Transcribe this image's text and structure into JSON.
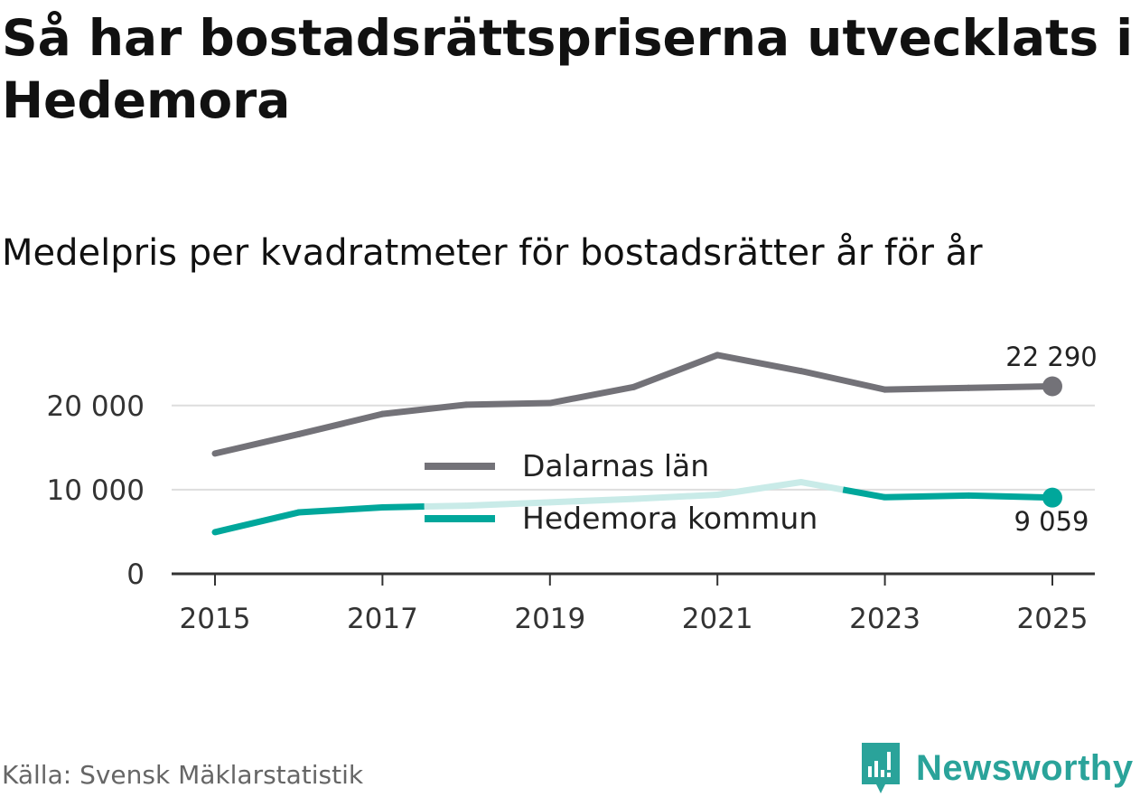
{
  "title": "Så har bostadsrättspriserna utvecklats i Hedemora",
  "subtitle": "Medelpris per kvadratmeter för bostadsrätter år för år",
  "source": "Källa: Svensk Mäklarstatistik",
  "brand": {
    "name": "Newsworthy",
    "icon": "newsworthy-logo-icon",
    "color": "#2aa39a"
  },
  "chart_data": {
    "type": "line",
    "title": "Så har bostadsrättspriserna utvecklats i Hedemora",
    "subtitle": "Medelpris per kvadratmeter för bostadsrätter år för år",
    "xlabel": "",
    "ylabel": "",
    "x": [
      2015,
      2016,
      2017,
      2018,
      2019,
      2020,
      2021,
      2022,
      2023,
      2024,
      2025
    ],
    "xticks": [
      "2015",
      "2017",
      "2019",
      "2021",
      "2023",
      "2025"
    ],
    "yticks": [
      0,
      10000,
      20000
    ],
    "ytick_labels": [
      "0",
      "10 000",
      "20 000"
    ],
    "ylim": [
      0,
      27000
    ],
    "grid": true,
    "legend_position": "center",
    "series": [
      {
        "name": "Dalarnas län",
        "color": "#737278",
        "values": [
          14300,
          16600,
          19000,
          20100,
          20300,
          22200,
          26000,
          24100,
          21900,
          22100,
          22290
        ],
        "end_label": "22 290"
      },
      {
        "name": "Hedemora kommun",
        "color": "#00a79b",
        "faded_color": "#c9ebe8",
        "values": [
          4950,
          7300,
          7900,
          8100,
          8500,
          8900,
          9400,
          10900,
          9100,
          9300,
          9059
        ],
        "faded_years": [
          2018,
          2019,
          2020,
          2021,
          2022
        ],
        "end_label": "9 059"
      }
    ]
  }
}
